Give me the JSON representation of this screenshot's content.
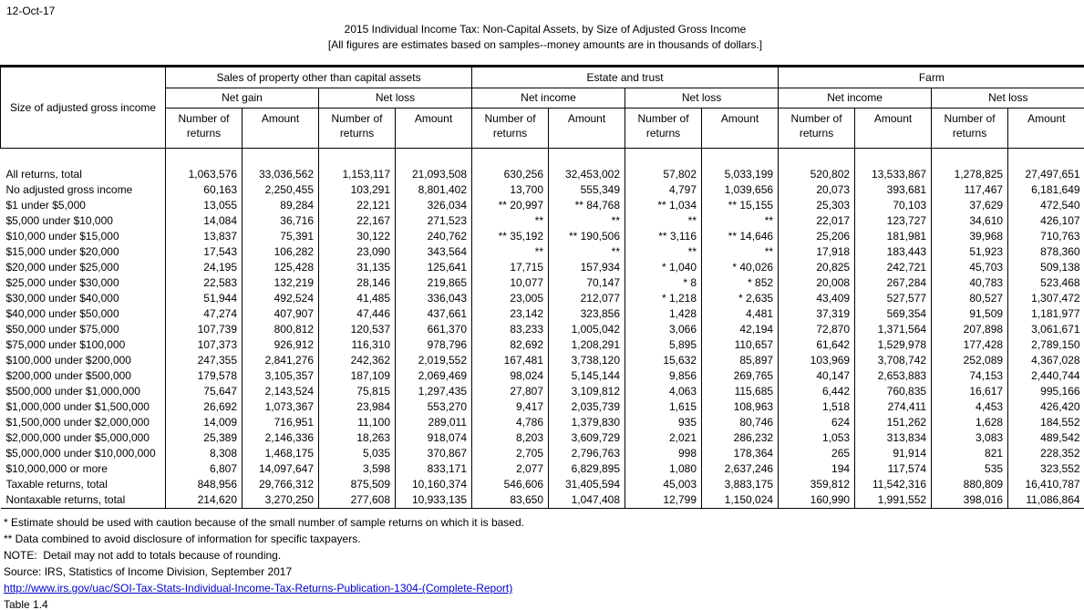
{
  "header": {
    "date": "12-Oct-17",
    "title": "2015 Individual Income Tax: Non-Capital Assets, by Size of Adjusted Gross Income",
    "subtitle": "[All figures are estimates based on samples--money amounts are in thousands of dollars.]"
  },
  "table": {
    "stub_header": "Size of adjusted gross income",
    "groups": [
      {
        "label": "Sales of property other than capital assets",
        "subgroups": [
          "Net gain",
          "Net loss"
        ]
      },
      {
        "label": "Estate and trust",
        "subgroups": [
          "Net income",
          "Net loss"
        ]
      },
      {
        "label": "Farm",
        "subgroups": [
          "Net income",
          "Net loss"
        ]
      }
    ],
    "col_headers": [
      "Number of returns",
      "Amount"
    ],
    "rows": [
      {
        "label": "All returns, total",
        "values": [
          "1,063,576",
          "33,036,562",
          "1,153,117",
          "21,093,508",
          "630,256",
          "32,453,002",
          "57,802",
          "5,033,199",
          "520,802",
          "13,533,867",
          "1,278,825",
          "27,497,651"
        ]
      },
      {
        "label": "No adjusted gross income",
        "values": [
          "60,163",
          "2,250,455",
          "103,291",
          "8,801,402",
          "13,700",
          "555,349",
          "4,797",
          "1,039,656",
          "20,073",
          "393,681",
          "117,467",
          "6,181,649"
        ]
      },
      {
        "label": "$1 under $5,000",
        "values": [
          "13,055",
          "89,284",
          "22,121",
          "326,034",
          "** 20,997",
          "** 84,768",
          "** 1,034",
          "** 15,155",
          "25,303",
          "70,103",
          "37,629",
          "472,540"
        ]
      },
      {
        "label": "$5,000 under $10,000",
        "values": [
          "14,084",
          "36,716",
          "22,167",
          "271,523",
          "**",
          "**",
          "**",
          "**",
          "22,017",
          "123,727",
          "34,610",
          "426,107"
        ]
      },
      {
        "label": "$10,000 under $15,000",
        "values": [
          "13,837",
          "75,391",
          "30,122",
          "240,762",
          "** 35,192",
          "** 190,506",
          "** 3,116",
          "** 14,646",
          "25,206",
          "181,981",
          "39,968",
          "710,763"
        ]
      },
      {
        "label": "$15,000 under $20,000",
        "values": [
          "17,543",
          "106,282",
          "23,090",
          "343,564",
          "**",
          "**",
          "**",
          "**",
          "17,918",
          "183,443",
          "51,923",
          "878,360"
        ]
      },
      {
        "label": "$20,000 under $25,000",
        "values": [
          "24,195",
          "125,428",
          "31,135",
          "125,641",
          "17,715",
          "157,934",
          "* 1,040",
          "* 40,026",
          "20,825",
          "242,721",
          "45,703",
          "509,138"
        ]
      },
      {
        "label": "$25,000 under $30,000",
        "values": [
          "22,583",
          "132,219",
          "28,146",
          "219,865",
          "10,077",
          "70,147",
          "* 8",
          "* 852",
          "20,008",
          "267,284",
          "40,783",
          "523,468"
        ]
      },
      {
        "label": "$30,000 under $40,000",
        "values": [
          "51,944",
          "492,524",
          "41,485",
          "336,043",
          "23,005",
          "212,077",
          "* 1,218",
          "* 2,635",
          "43,409",
          "527,577",
          "80,527",
          "1,307,472"
        ]
      },
      {
        "label": "$40,000 under $50,000",
        "values": [
          "47,274",
          "407,907",
          "47,446",
          "437,661",
          "23,142",
          "323,856",
          "1,428",
          "4,481",
          "37,319",
          "569,354",
          "91,509",
          "1,181,977"
        ]
      },
      {
        "label": "$50,000 under $75,000",
        "values": [
          "107,739",
          "800,812",
          "120,537",
          "661,370",
          "83,233",
          "1,005,042",
          "3,066",
          "42,194",
          "72,870",
          "1,371,564",
          "207,898",
          "3,061,671"
        ]
      },
      {
        "label": "$75,000 under $100,000",
        "values": [
          "107,373",
          "926,912",
          "116,310",
          "978,796",
          "82,692",
          "1,208,291",
          "5,895",
          "110,657",
          "61,642",
          "1,529,978",
          "177,428",
          "2,789,150"
        ]
      },
      {
        "label": "$100,000 under $200,000",
        "values": [
          "247,355",
          "2,841,276",
          "242,362",
          "2,019,552",
          "167,481",
          "3,738,120",
          "15,632",
          "85,897",
          "103,969",
          "3,708,742",
          "252,089",
          "4,367,028"
        ]
      },
      {
        "label": "$200,000 under $500,000",
        "values": [
          "179,578",
          "3,105,357",
          "187,109",
          "2,069,469",
          "98,024",
          "5,145,144",
          "9,856",
          "269,765",
          "40,147",
          "2,653,883",
          "74,153",
          "2,440,744"
        ]
      },
      {
        "label": "$500,000 under $1,000,000",
        "values": [
          "75,647",
          "2,143,524",
          "75,815",
          "1,297,435",
          "27,807",
          "3,109,812",
          "4,063",
          "115,685",
          "6,442",
          "760,835",
          "16,617",
          "995,166"
        ]
      },
      {
        "label": "$1,000,000 under $1,500,000",
        "values": [
          "26,692",
          "1,073,367",
          "23,984",
          "553,270",
          "9,417",
          "2,035,739",
          "1,615",
          "108,963",
          "1,518",
          "274,411",
          "4,453",
          "426,420"
        ]
      },
      {
        "label": "$1,500,000 under $2,000,000",
        "values": [
          "14,009",
          "716,951",
          "11,100",
          "289,011",
          "4,786",
          "1,379,830",
          "935",
          "80,746",
          "624",
          "151,262",
          "1,628",
          "184,552"
        ]
      },
      {
        "label": "$2,000,000 under $5,000,000",
        "values": [
          "25,389",
          "2,146,336",
          "18,263",
          "918,074",
          "8,203",
          "3,609,729",
          "2,021",
          "286,232",
          "1,053",
          "313,834",
          "3,083",
          "489,542"
        ]
      },
      {
        "label": "$5,000,000 under $10,000,000",
        "values": [
          "8,308",
          "1,468,175",
          "5,035",
          "370,867",
          "2,705",
          "2,796,763",
          "998",
          "178,364",
          "265",
          "91,914",
          "821",
          "228,352"
        ]
      },
      {
        "label": "$10,000,000 or more",
        "values": [
          "6,807",
          "14,097,647",
          "3,598",
          "833,171",
          "2,077",
          "6,829,895",
          "1,080",
          "2,637,246",
          "194",
          "117,574",
          "535",
          "323,552"
        ]
      },
      {
        "label": "Taxable returns, total",
        "values": [
          "848,956",
          "29,766,312",
          "875,509",
          "10,160,374",
          "546,606",
          "31,405,594",
          "45,003",
          "3,883,175",
          "359,812",
          "11,542,316",
          "880,809",
          "16,410,787"
        ]
      },
      {
        "label": "Nontaxable returns, total",
        "values": [
          "214,620",
          "3,270,250",
          "277,608",
          "10,933,135",
          "83,650",
          "1,047,408",
          "12,799",
          "1,150,024",
          "160,990",
          "1,991,552",
          "398,016",
          "11,086,864"
        ]
      }
    ]
  },
  "footer": {
    "footnote_star": "* Estimate should be used with caution because of the small number of sample returns on which it is based.",
    "footnote_double_star": "** Data combined to avoid disclosure of information for specific taxpayers.",
    "note": "NOTE:  Detail may not add to totals because of rounding.",
    "source": "Source: IRS, Statistics of Income Division, September 2017",
    "link": "http://www.irs.gov/uac/SOI-Tax-Stats-Individual-Income-Tax-Returns-Publication-1304-(Complete-Report)",
    "table_ref": "Table 1.4"
  },
  "colors": {
    "link_blue": "#0000cc",
    "text": "#000000",
    "background": "#ffffff"
  }
}
